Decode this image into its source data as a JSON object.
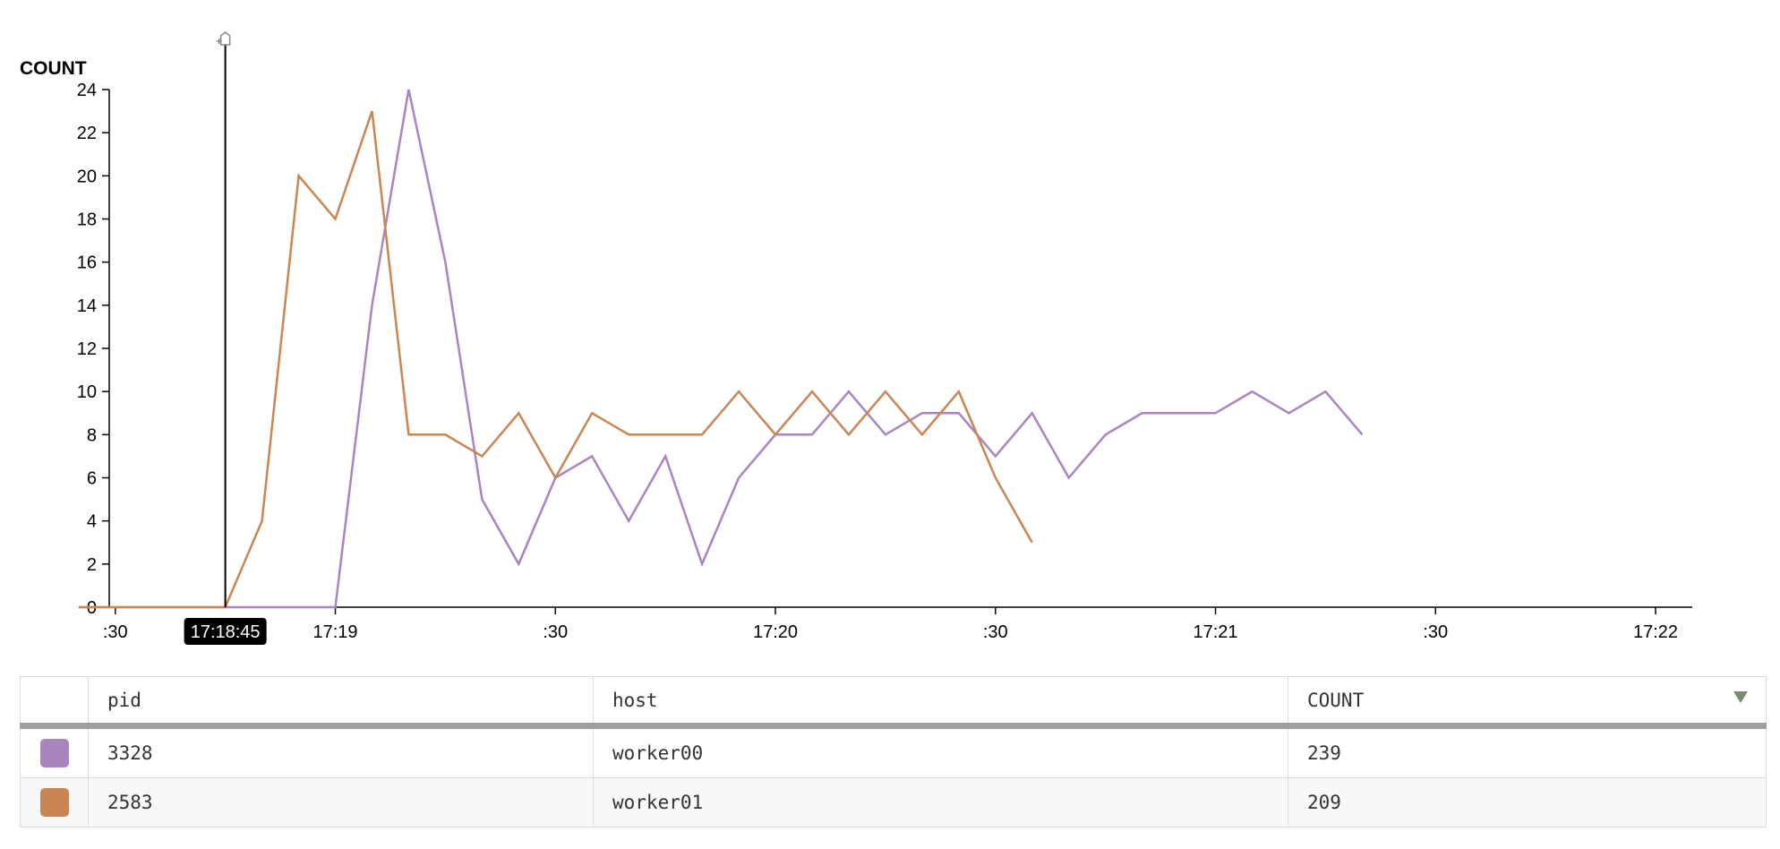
{
  "chart_data": {
    "type": "line",
    "ylabel": "COUNT",
    "ylim": [
      0,
      24
    ],
    "yticks": [
      0,
      2,
      4,
      6,
      8,
      10,
      12,
      14,
      16,
      18,
      20,
      22,
      24
    ],
    "xlim": [
      "17:18:26",
      "17:22:05"
    ],
    "xticks": [
      {
        "time": "17:18:30",
        "label": ":30"
      },
      {
        "time": "17:19:00",
        "label": "17:19"
      },
      {
        "time": "17:19:30",
        "label": ":30"
      },
      {
        "time": "17:20:00",
        "label": "17:20"
      },
      {
        "time": "17:20:30",
        "label": ":30"
      },
      {
        "time": "17:21:00",
        "label": "17:21"
      },
      {
        "time": "17:21:30",
        "label": ":30"
      },
      {
        "time": "17:22:00",
        "label": "17:22"
      }
    ],
    "cursor": {
      "time": "17:18:45",
      "label": "17:18:45"
    },
    "series": [
      {
        "name": "3328 / worker00",
        "color": "#a985bf",
        "points": [
          [
            "17:18:25",
            0
          ],
          [
            "17:18:30",
            0
          ],
          [
            "17:18:35",
            0
          ],
          [
            "17:18:40",
            0
          ],
          [
            "17:18:45",
            0
          ],
          [
            "17:18:50",
            0
          ],
          [
            "17:18:55",
            0
          ],
          [
            "17:19:00",
            0
          ],
          [
            "17:19:05",
            14
          ],
          [
            "17:19:10",
            24
          ],
          [
            "17:19:15",
            16
          ],
          [
            "17:19:20",
            5
          ],
          [
            "17:19:25",
            2
          ],
          [
            "17:19:30",
            6
          ],
          [
            "17:19:35",
            7
          ],
          [
            "17:19:40",
            4
          ],
          [
            "17:19:45",
            7
          ],
          [
            "17:19:50",
            2
          ],
          [
            "17:19:55",
            6
          ],
          [
            "17:20:00",
            8
          ],
          [
            "17:20:05",
            8
          ],
          [
            "17:20:10",
            10
          ],
          [
            "17:20:15",
            8
          ],
          [
            "17:20:20",
            9
          ],
          [
            "17:20:25",
            9
          ],
          [
            "17:20:30",
            7
          ],
          [
            "17:20:35",
            9
          ],
          [
            "17:20:40",
            6
          ],
          [
            "17:20:45",
            8
          ],
          [
            "17:20:50",
            9
          ],
          [
            "17:20:55",
            9
          ],
          [
            "17:21:00",
            9
          ],
          [
            "17:21:05",
            10
          ],
          [
            "17:21:10",
            9
          ],
          [
            "17:21:15",
            10
          ],
          [
            "17:21:20",
            8
          ]
        ]
      },
      {
        "name": "2583 / worker01",
        "color": "#c98552",
        "points": [
          [
            "17:18:25",
            0
          ],
          [
            "17:18:30",
            0
          ],
          [
            "17:18:35",
            0
          ],
          [
            "17:18:40",
            0
          ],
          [
            "17:18:45",
            0
          ],
          [
            "17:18:50",
            4
          ],
          [
            "17:18:55",
            20
          ],
          [
            "17:19:00",
            18
          ],
          [
            "17:19:05",
            23
          ],
          [
            "17:19:10",
            8
          ],
          [
            "17:19:15",
            8
          ],
          [
            "17:19:20",
            7
          ],
          [
            "17:19:25",
            9
          ],
          [
            "17:19:30",
            6
          ],
          [
            "17:19:35",
            9
          ],
          [
            "17:19:40",
            8
          ],
          [
            "17:19:45",
            8
          ],
          [
            "17:19:50",
            8
          ],
          [
            "17:19:55",
            10
          ],
          [
            "17:20:00",
            8
          ],
          [
            "17:20:05",
            10
          ],
          [
            "17:20:10",
            8
          ],
          [
            "17:20:15",
            10
          ],
          [
            "17:20:20",
            8
          ],
          [
            "17:20:25",
            10
          ],
          [
            "17:20:30",
            6
          ],
          [
            "17:20:35",
            3
          ]
        ]
      }
    ]
  },
  "legend_table": {
    "columns": [
      "",
      "pid",
      "host",
      "COUNT"
    ],
    "sort_icon": "sort-descending-icon",
    "rows": [
      {
        "color": "#a985bf",
        "pid": "3328",
        "host": "worker00",
        "count": "239"
      },
      {
        "color": "#c98552",
        "pid": "2583",
        "host": "worker01",
        "count": "209"
      }
    ]
  }
}
